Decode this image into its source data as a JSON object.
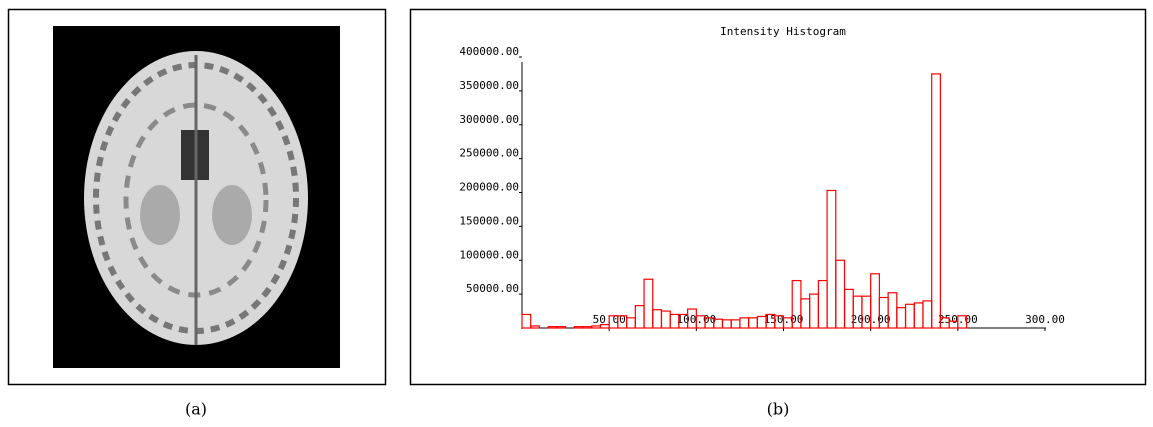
{
  "captions": [
    "(a)",
    "(b)"
  ],
  "chart_data": {
    "type": "histogram",
    "title": "Intensity Histogram",
    "color": "#ff0000",
    "bins": [
      0,
      5,
      10,
      15,
      20,
      25,
      30,
      35,
      40,
      45,
      50,
      55,
      60,
      65,
      70,
      75,
      80,
      85,
      90,
      95,
      100,
      105,
      110,
      115,
      120,
      125,
      130,
      135,
      140,
      145,
      150,
      155,
      160,
      165,
      170,
      175,
      180,
      185,
      190,
      195,
      200,
      205,
      210,
      215,
      220,
      225,
      230,
      235,
      240,
      245,
      250,
      255
    ],
    "values": [
      20000,
      3000,
      0,
      2000,
      2000,
      0,
      2000,
      2000,
      3000,
      5000,
      18000,
      18000,
      15000,
      33000,
      72000,
      27000,
      25000,
      20000,
      20000,
      28000,
      18000,
      15000,
      13000,
      12000,
      12000,
      15000,
      15000,
      17000,
      20000,
      18000,
      15000,
      70000,
      43000,
      50000,
      70000,
      203000,
      100000,
      57000,
      47000,
      47000,
      80000,
      45000,
      52000,
      30000,
      35000,
      37000,
      40000,
      375000,
      15000,
      10000,
      18000
    ],
    "xlim": [
      0,
      300
    ],
    "ylim": [
      0,
      400000
    ],
    "xticks": [
      {
        "value": 50,
        "label": "50.00"
      },
      {
        "value": 100,
        "label": "100.00"
      },
      {
        "value": 150,
        "label": "150.00"
      },
      {
        "value": 200,
        "label": "200.00"
      },
      {
        "value": 250,
        "label": "250.00"
      },
      {
        "value": 300,
        "label": "300.00"
      }
    ],
    "yticks": [
      {
        "value": 50000,
        "label": "50000.00"
      },
      {
        "value": 100000,
        "label": "100000.00"
      },
      {
        "value": 150000,
        "label": "150000.00"
      },
      {
        "value": 200000,
        "label": "200000.00"
      },
      {
        "value": 250000,
        "label": "250000.00"
      },
      {
        "value": 300000,
        "label": "300000.00"
      },
      {
        "value": 350000,
        "label": "350000.00"
      },
      {
        "value": 400000,
        "label": "400000.00"
      }
    ]
  }
}
